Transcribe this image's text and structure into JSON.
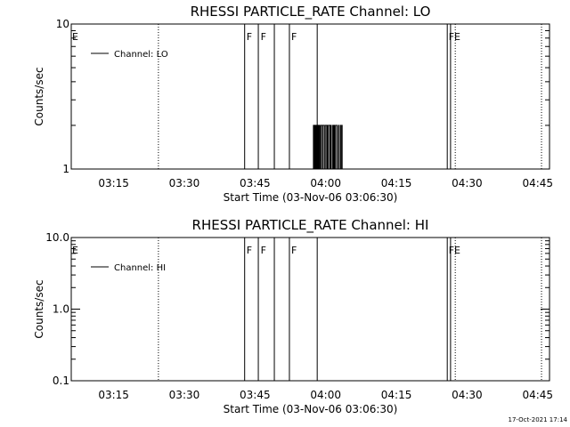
{
  "footer": {
    "timestamp": "17-Oct-2021 17:14"
  },
  "chart_data": [
    {
      "type": "line",
      "title": "RHESSI PARTICLE_RATE Channel: LO",
      "xlabel": "Start Time (03-Nov-06 03:06:30)",
      "ylabel": "Counts/sec",
      "yscale": "log",
      "ylim": [
        1,
        10
      ],
      "yticks": [
        1,
        10
      ],
      "ytick_labels": [
        "1",
        "10"
      ],
      "xlim_minutes": [
        -0.5,
        101
      ],
      "xticks_minutes": [
        8.5,
        23.5,
        38.5,
        53.5,
        68.5,
        83.5,
        98.5
      ],
      "xtick_labels": [
        "03:15",
        "03:30",
        "03:45",
        "04:00",
        "04:15",
        "04:30",
        "04:45"
      ],
      "legend": {
        "label": "Channel: LO",
        "position": "top-left"
      },
      "grid": false,
      "solid_lines_minutes": [
        36.3,
        39.2,
        42.6,
        45.8,
        51.7,
        79.3,
        80.0
      ],
      "dotted_lines_minutes": [
        18.0,
        81.0,
        99.3
      ],
      "flags": [
        {
          "text": "E",
          "x_minutes": -0.5
        },
        {
          "text": "F",
          "x_minutes": 36.5
        },
        {
          "text": "F",
          "x_minutes": 39.5
        },
        {
          "text": "F",
          "x_minutes": 46.0
        },
        {
          "text": "FE",
          "x_minutes": 79.4
        }
      ],
      "series": [
        {
          "x_minutes": [
            -0.5,
            50.8,
            50.9,
            51.0,
            51.1,
            51.2,
            51.3,
            51.4,
            51.5,
            51.6,
            51.7,
            51.8,
            51.9,
            52.0,
            52.1,
            52.2,
            52.3,
            52.4,
            52.5,
            52.6,
            52.7,
            52.8,
            52.9,
            53.0,
            53.1,
            53.2,
            53.3,
            53.4,
            53.5,
            53.6,
            53.7,
            53.8,
            53.9,
            54.0,
            54.1,
            54.2,
            54.3,
            54.4,
            54.5,
            54.6,
            54.7,
            54.8,
            54.9,
            55.0,
            55.1,
            55.2,
            55.3,
            55.4,
            55.5,
            55.6,
            55.7,
            55.8,
            55.9,
            56.0,
            56.1,
            56.2,
            56.3,
            56.4,
            56.5,
            56.6,
            56.7,
            56.8,
            56.9,
            57.0,
            101
          ],
          "values": [
            1,
            1,
            2,
            1,
            2,
            1,
            2,
            1,
            1,
            2,
            2,
            1,
            2,
            1,
            2,
            2,
            1,
            1,
            2,
            2,
            2,
            1,
            2,
            2,
            2,
            1,
            1,
            2,
            2,
            2,
            1,
            2,
            1,
            1,
            2,
            2,
            2,
            1,
            2,
            2,
            1,
            1,
            1,
            2,
            1,
            2,
            2,
            1,
            1,
            2,
            2,
            2,
            1,
            1,
            1,
            2,
            1,
            1,
            1,
            2,
            1,
            1,
            2,
            1,
            1
          ]
        }
      ]
    },
    {
      "type": "line",
      "title": "RHESSI PARTICLE_RATE Channel: HI",
      "xlabel": "Start Time (03-Nov-06 03:06:30)",
      "ylabel": "Counts/sec",
      "yscale": "log",
      "ylim": [
        0.1,
        10
      ],
      "yticks": [
        0.1,
        1,
        10
      ],
      "ytick_labels": [
        "0.1",
        "1.0",
        "10.0"
      ],
      "xlim_minutes": [
        -0.5,
        101
      ],
      "xticks_minutes": [
        8.5,
        23.5,
        38.5,
        53.5,
        68.5,
        83.5,
        98.5
      ],
      "xtick_labels": [
        "03:15",
        "03:30",
        "03:45",
        "04:00",
        "04:15",
        "04:30",
        "04:45"
      ],
      "legend": {
        "label": "Channel: HI",
        "position": "top-left"
      },
      "grid": false,
      "solid_lines_minutes": [
        36.3,
        39.2,
        42.6,
        45.8,
        51.7,
        79.3,
        80.0
      ],
      "dotted_lines_minutes": [
        18.0,
        81.0,
        99.3
      ],
      "flags": [
        {
          "text": "E",
          "x_minutes": -0.5
        },
        {
          "text": "F",
          "x_minutes": 36.5
        },
        {
          "text": "F",
          "x_minutes": 39.5
        },
        {
          "text": "F",
          "x_minutes": 46.0
        },
        {
          "text": "FE",
          "x_minutes": 79.4
        }
      ],
      "series": []
    }
  ]
}
